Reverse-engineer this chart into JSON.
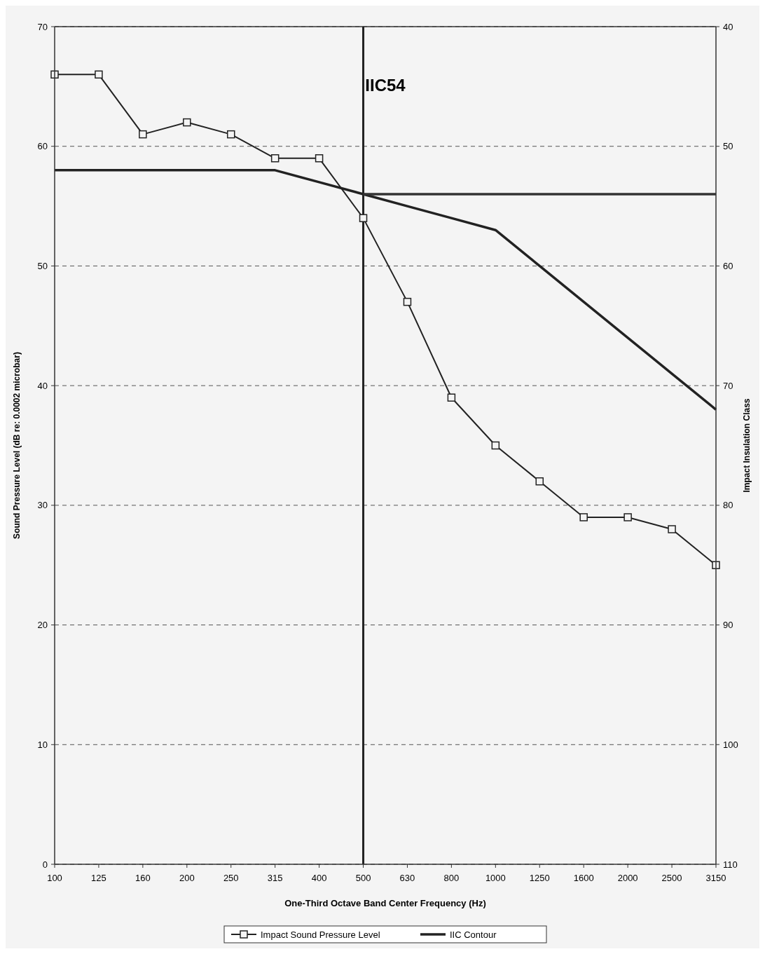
{
  "chart_data": {
    "type": "line",
    "title": "IIC54",
    "xlabel": "One-Third Octave Band Center Frequency (Hz)",
    "ylabel": "Sound Pressure Level (dB re: 0.0002 microbar)",
    "y2label": "Impact Insulation Class",
    "categories": [
      "100",
      "125",
      "160",
      "200",
      "250",
      "315",
      "400",
      "500",
      "630",
      "800",
      "1000",
      "1250",
      "1600",
      "2000",
      "2500",
      "3150"
    ],
    "series": [
      {
        "name": "Impact Sound Pressure Level",
        "color": "#222222",
        "marker": "square",
        "values": [
          66,
          66,
          61,
          62,
          61,
          59,
          59,
          54,
          47,
          39,
          35,
          32,
          29,
          29,
          28,
          25
        ]
      },
      {
        "name": "IIC Contour",
        "color": "#222222",
        "marker": "none",
        "values": [
          58,
          58,
          58,
          58,
          58,
          58,
          57,
          56,
          55,
          54,
          53,
          50,
          47,
          44,
          41,
          38
        ]
      },
      {
        "color": "#333333",
        "marker": "none",
        "axis": "y2",
        "values": [
          null,
          null,
          null,
          null,
          null,
          null,
          null,
          54,
          54,
          54,
          54,
          54,
          54,
          54,
          54,
          54
        ]
      }
    ],
    "ylim": [
      0,
      70
    ],
    "yticks": [
      0,
      10,
      20,
      30,
      40,
      50,
      60,
      70
    ],
    "y2lim": [
      110,
      40
    ],
    "y2ticks": [
      40,
      50,
      60,
      70,
      80,
      90,
      100,
      110
    ],
    "ref_lines": [
      {
        "axis": "x",
        "value": "500",
        "color": "#222222"
      }
    ],
    "grid": "y",
    "legend": "bottom"
  }
}
